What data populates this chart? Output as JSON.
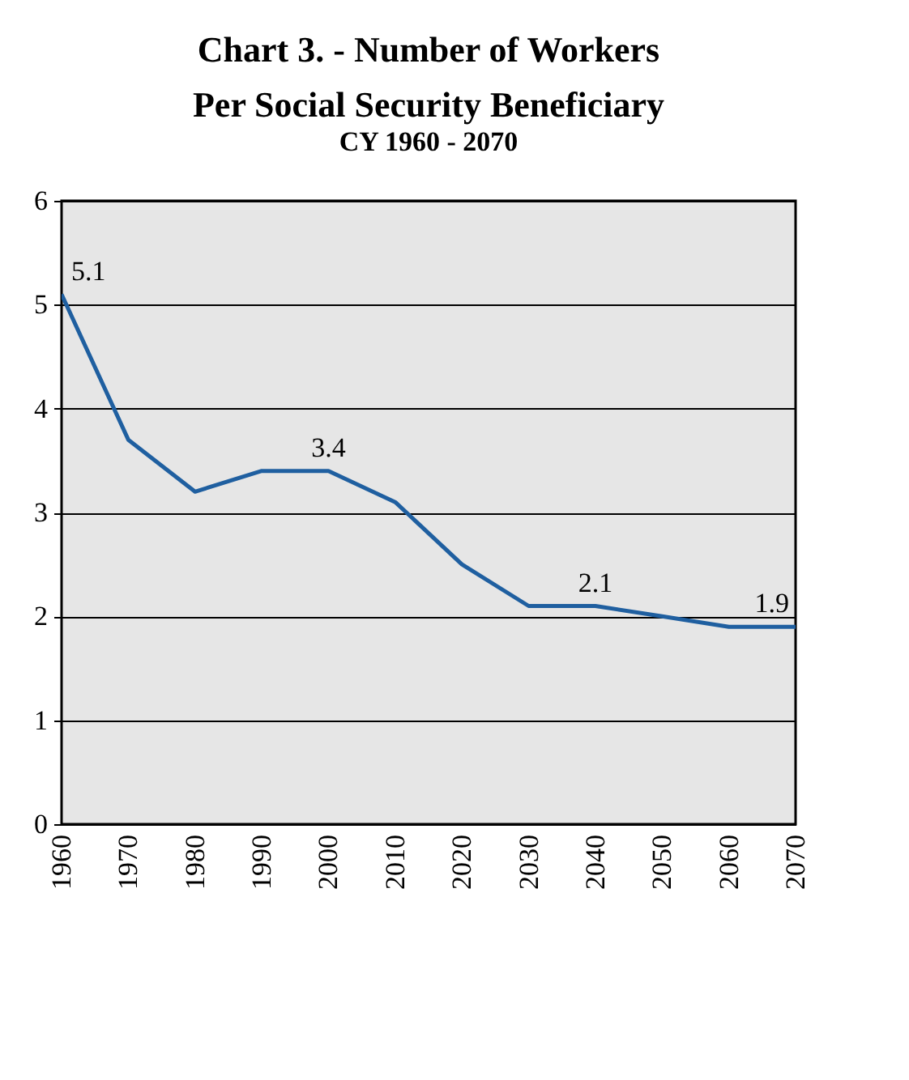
{
  "chart_data": {
    "type": "line",
    "title": "Chart 3. - Number of Workers Per Social Security Beneficiary",
    "subtitle": "CY 1960 - 2070",
    "categories": [
      "1960",
      "1970",
      "1980",
      "1990",
      "2000",
      "2010",
      "2020",
      "2030",
      "2040",
      "2050",
      "2060",
      "2070"
    ],
    "series": [
      {
        "color": "#1f5fa0",
        "values": [
          5.1,
          3.7,
          3.2,
          3.4,
          3.4,
          3.1,
          2.5,
          2.1,
          2.1,
          2.0,
          1.9,
          1.9
        ],
        "value_labels": [
          "5.1",
          null,
          null,
          null,
          "3.4",
          null,
          null,
          null,
          "2.1",
          null,
          null,
          "1.9"
        ]
      }
    ],
    "ylim": [
      0,
      6
    ],
    "yticks": [
      0,
      1,
      2,
      3,
      4,
      5,
      6
    ],
    "grid": "y",
    "marker": "none",
    "line_style": "solid"
  }
}
